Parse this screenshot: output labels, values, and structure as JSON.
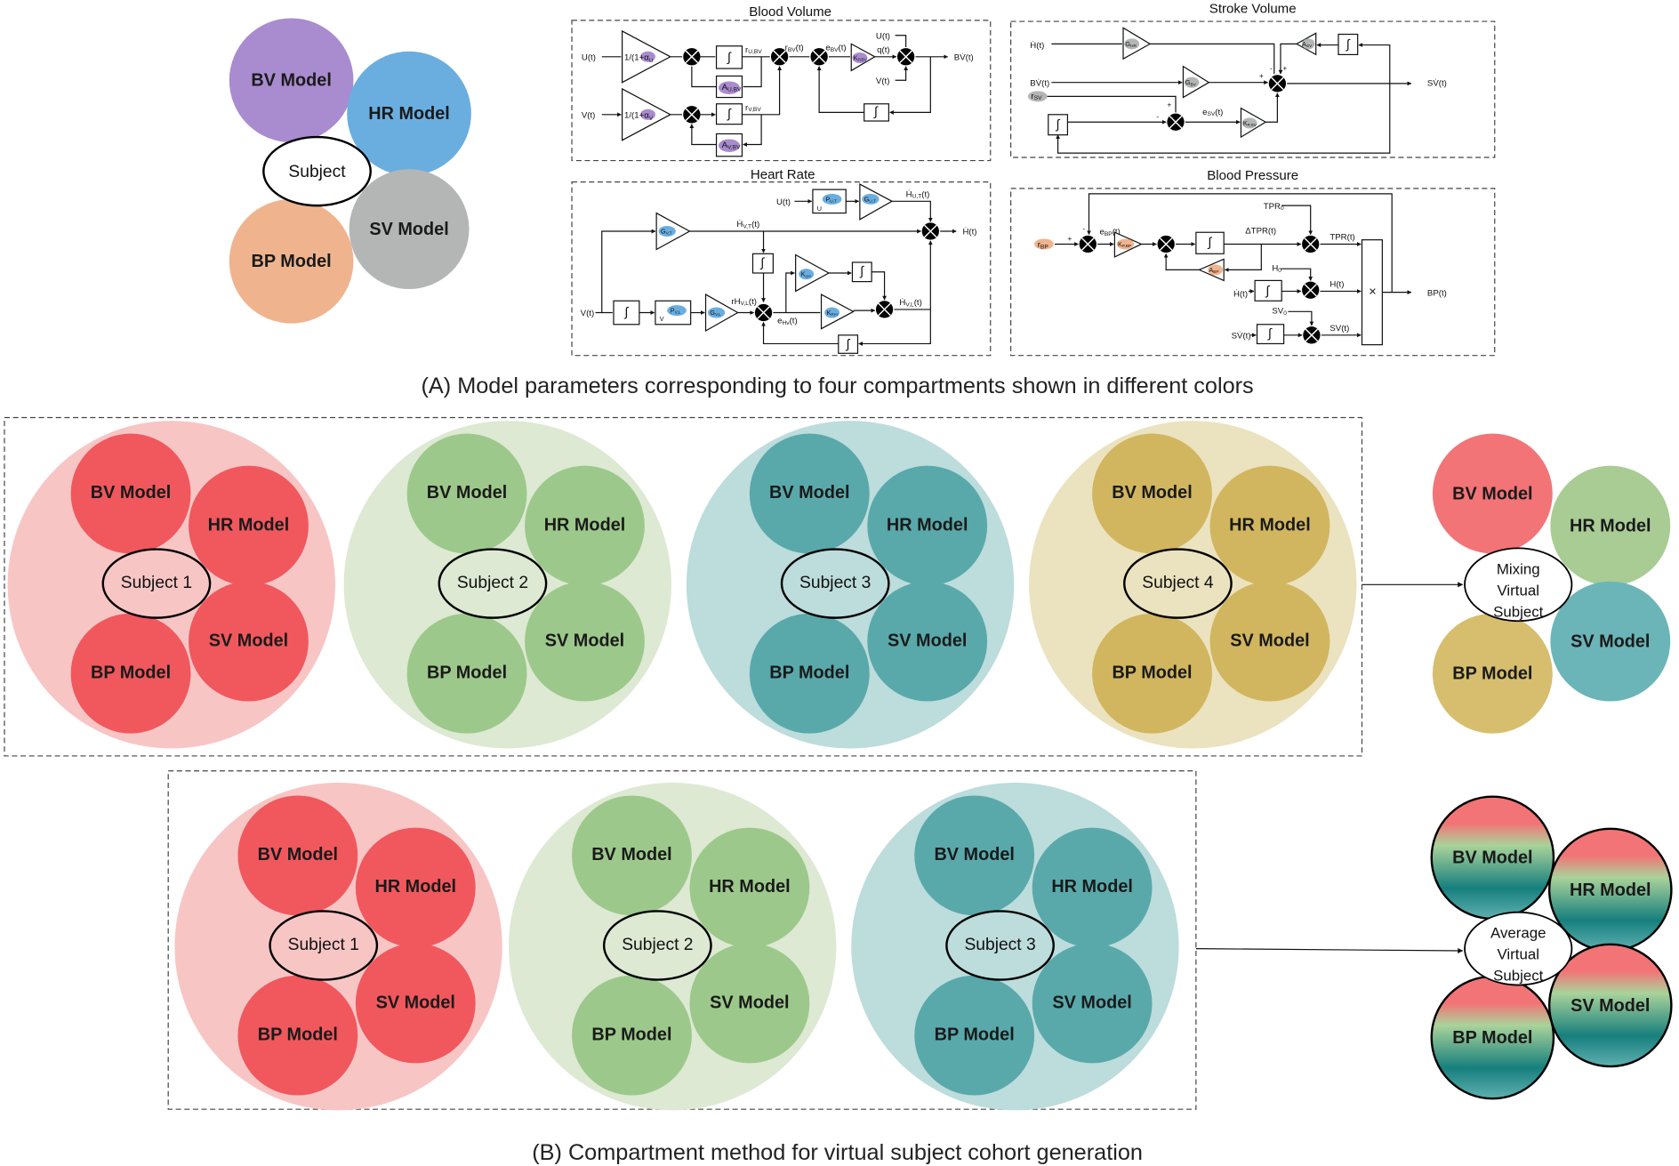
{
  "colors": {
    "bv": "#a98bcf",
    "hr": "#6aaee0",
    "bp": "#efb48e",
    "sv": "#b4b6b6",
    "red": "#f0585d",
    "red_bg": "#f8c5c5",
    "green": "#9dc88b",
    "green_bg": "#dde9d3",
    "teal": "#59a9ab",
    "teal_bg": "#bddcdc",
    "gold": "#d1b65f",
    "gold_bg": "#ebe2bf",
    "mix_red": "#f27476",
    "mix_green": "#a8cc93",
    "mix_teal": "#6bb5b8",
    "mix_gold": "#d6be6e"
  },
  "overview": {
    "bv": "BV Model",
    "hr": "HR Model",
    "sv": "SV Model",
    "bp": "BP Model",
    "subject": "Subject"
  },
  "model_labels": {
    "bv": "BV Model",
    "hr": "HR Model",
    "sv": "SV Model",
    "bp": "BP Model"
  },
  "integral": "∫",
  "diagrams": {
    "blood_volume": {
      "title": "Blood Volume",
      "u_in": "U(t)",
      "v_in": "V(t)",
      "gain_u": {
        "m": "1/(1+α",
        "s": "U"
      },
      "gain_v": {
        "m": "1/(1+α",
        "s": "V"
      },
      "a_u": {
        "m": "A",
        "s": "U,BV"
      },
      "a_v": {
        "m": "A",
        "s": "V,BV"
      },
      "r_u": {
        "m": "r",
        "s": "U,BV"
      },
      "r_v": {
        "m": "r",
        "s": "V,BV"
      },
      "r_bv": {
        "m": "r",
        "s": "BV",
        "t": "(t)"
      },
      "e_bv": {
        "m": "e",
        "s": "BV",
        "t": "(t)"
      },
      "kp": {
        "m": "K",
        "s": "P,BV"
      },
      "q": "q(t)",
      "u2": "U(t)",
      "v2": "V(t)",
      "out": "BV̇(t)"
    },
    "stroke_volume": {
      "title": "Stroke Volume",
      "h_in": "Ḣ(t)",
      "bv_in": "BV̇(t)",
      "r_sv": {
        "m": "r",
        "s": "SV"
      },
      "g_hr": {
        "m": "G",
        "s": "HR"
      },
      "g_bv": {
        "m": "G",
        "s": "BV"
      },
      "a_sv": {
        "m": "A",
        "s": "SV"
      },
      "e_sv": {
        "m": "e",
        "s": "SV",
        "t": "(t)"
      },
      "kp": {
        "m": "K",
        "s": "P,SV"
      },
      "out": "SV̇(t)"
    },
    "heart_rate": {
      "title": "Heart Rate",
      "u_in": "U(t)",
      "v_in": "V(t)",
      "p_ut": {
        "m": "P",
        "s": "U,T",
        "base": "U"
      },
      "g_ut": {
        "m": "G",
        "s": "U,T"
      },
      "h_ut": {
        "m": "Ḣ",
        "s": "U,T",
        "t": "(t)"
      },
      "g_vt": {
        "m": "G",
        "s": "V,T"
      },
      "h_vt": {
        "m": "Ḣ",
        "s": "V,T",
        "t": "(t)"
      },
      "p_vl": {
        "m": "P",
        "s": "V,L",
        "base": "V"
      },
      "g_vl": {
        "m": "G",
        "s": "V,L"
      },
      "rh_vl": {
        "m": "rH",
        "s": "V,L",
        "t": "(t)"
      },
      "e_hv": {
        "m": "e",
        "s": "Hv",
        "t": "(t)"
      },
      "ki": {
        "m": "K",
        "s": "I,H"
      },
      "kp": {
        "m": "K",
        "s": "P,H"
      },
      "h_vl": {
        "m": "Ḣ",
        "s": "V,L",
        "t": "(t)"
      },
      "out": "Ḣ(t)"
    },
    "blood_pressure": {
      "title": "Blood Pressure",
      "r_bp": {
        "m": "r",
        "s": "BP"
      },
      "e_bp": {
        "m": "e",
        "s": "BP",
        "t": "(t)"
      },
      "kp": {
        "m": "K",
        "s": "P,BP"
      },
      "a_bp": {
        "m": "A",
        "s": "BP"
      },
      "dtpr": "ΔTPR(t)",
      "tpr0": {
        "m": "TPR",
        "s": "0"
      },
      "tpr": "TPR(t)",
      "h0": {
        "m": "H",
        "s": "0"
      },
      "h_in": "Ḣ(t)",
      "h": "H(t)",
      "sv0": {
        "m": "SV",
        "s": "0"
      },
      "sv_in": "SV̇(t)",
      "sv": "SV(t)",
      "mult": "×",
      "out": "BP(t)"
    }
  },
  "caption_a": "(A) Model parameters corresponding to four compartments shown in different colors",
  "caption_b": "(B) Compartment method for virtual subject cohort generation",
  "mixing": {
    "subjects": [
      {
        "label": "Subject 1",
        "color": "red"
      },
      {
        "label": "Subject 2",
        "color": "green"
      },
      {
        "label": "Subject 3",
        "color": "teal"
      },
      {
        "label": "Subject 4",
        "color": "gold"
      }
    ],
    "result_label": [
      "Mixing",
      "Virtual",
      "Subject"
    ]
  },
  "average": {
    "subjects": [
      {
        "label": "Subject 1",
        "color": "red"
      },
      {
        "label": "Subject 2",
        "color": "green"
      },
      {
        "label": "Subject 3",
        "color": "teal"
      }
    ],
    "result_label": [
      "Average",
      "Virtual",
      "Subject"
    ]
  }
}
